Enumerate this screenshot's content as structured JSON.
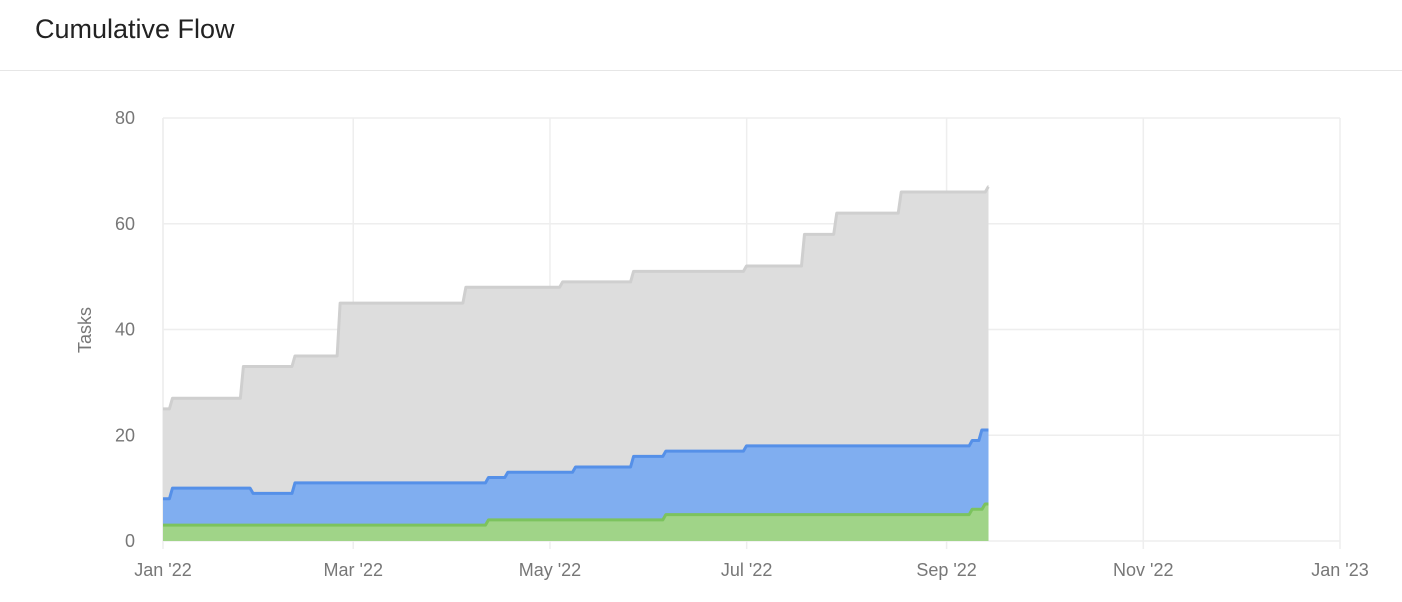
{
  "header": {
    "title": "Cumulative Flow"
  },
  "chart_data": {
    "type": "area",
    "stacked": true,
    "step": true,
    "title": "Cumulative Flow",
    "xlabel": "",
    "ylabel": "Tasks",
    "ylim": [
      0,
      80
    ],
    "yticks": [
      0,
      20,
      40,
      60,
      80
    ],
    "xlim": [
      "2022-01-01",
      "2023-01-01"
    ],
    "xticks": [
      {
        "date": "2022-01-01",
        "label": "Jan '22"
      },
      {
        "date": "2022-03-01",
        "label": "Mar '22"
      },
      {
        "date": "2022-05-01",
        "label": "May '22"
      },
      {
        "date": "2022-07-01",
        "label": "Jul '22"
      },
      {
        "date": "2022-09-01",
        "label": "Sep '22"
      },
      {
        "date": "2022-11-01",
        "label": "Nov '22"
      },
      {
        "date": "2023-01-01",
        "label": "Jan '23"
      }
    ],
    "grid": true,
    "end_date": "2022-09-14",
    "series": [
      {
        "name": "gray",
        "fill": "#dddddd",
        "line": "#cfcfcf",
        "points": [
          [
            "2022-01-01",
            25
          ],
          [
            "2022-01-03",
            27
          ],
          [
            "2022-01-25",
            33
          ],
          [
            "2022-02-10",
            35
          ],
          [
            "2022-02-24",
            45
          ],
          [
            "2022-04-04",
            48
          ],
          [
            "2022-05-04",
            49
          ],
          [
            "2022-05-26",
            51
          ],
          [
            "2022-06-30",
            52
          ],
          [
            "2022-07-18",
            58
          ],
          [
            "2022-07-28",
            62
          ],
          [
            "2022-08-17",
            66
          ],
          [
            "2022-09-13",
            67
          ]
        ]
      },
      {
        "name": "blue",
        "fill": "#80aef0",
        "line": "#5590e8",
        "points": [
          [
            "2022-01-01",
            8
          ],
          [
            "2022-01-03",
            10
          ],
          [
            "2022-01-28",
            9
          ],
          [
            "2022-02-10",
            11
          ],
          [
            "2022-04-11",
            12
          ],
          [
            "2022-04-17",
            13
          ],
          [
            "2022-05-08",
            14
          ],
          [
            "2022-05-26",
            16
          ],
          [
            "2022-06-05",
            17
          ],
          [
            "2022-06-30",
            18
          ],
          [
            "2022-09-08",
            19
          ],
          [
            "2022-09-11",
            21
          ]
        ]
      },
      {
        "name": "green",
        "fill": "#a0d488",
        "line": "#7cc35e",
        "points": [
          [
            "2022-01-01",
            3
          ],
          [
            "2022-04-11",
            4
          ],
          [
            "2022-06-05",
            5
          ],
          [
            "2022-09-08",
            6
          ],
          [
            "2022-09-12",
            7
          ]
        ]
      }
    ]
  }
}
